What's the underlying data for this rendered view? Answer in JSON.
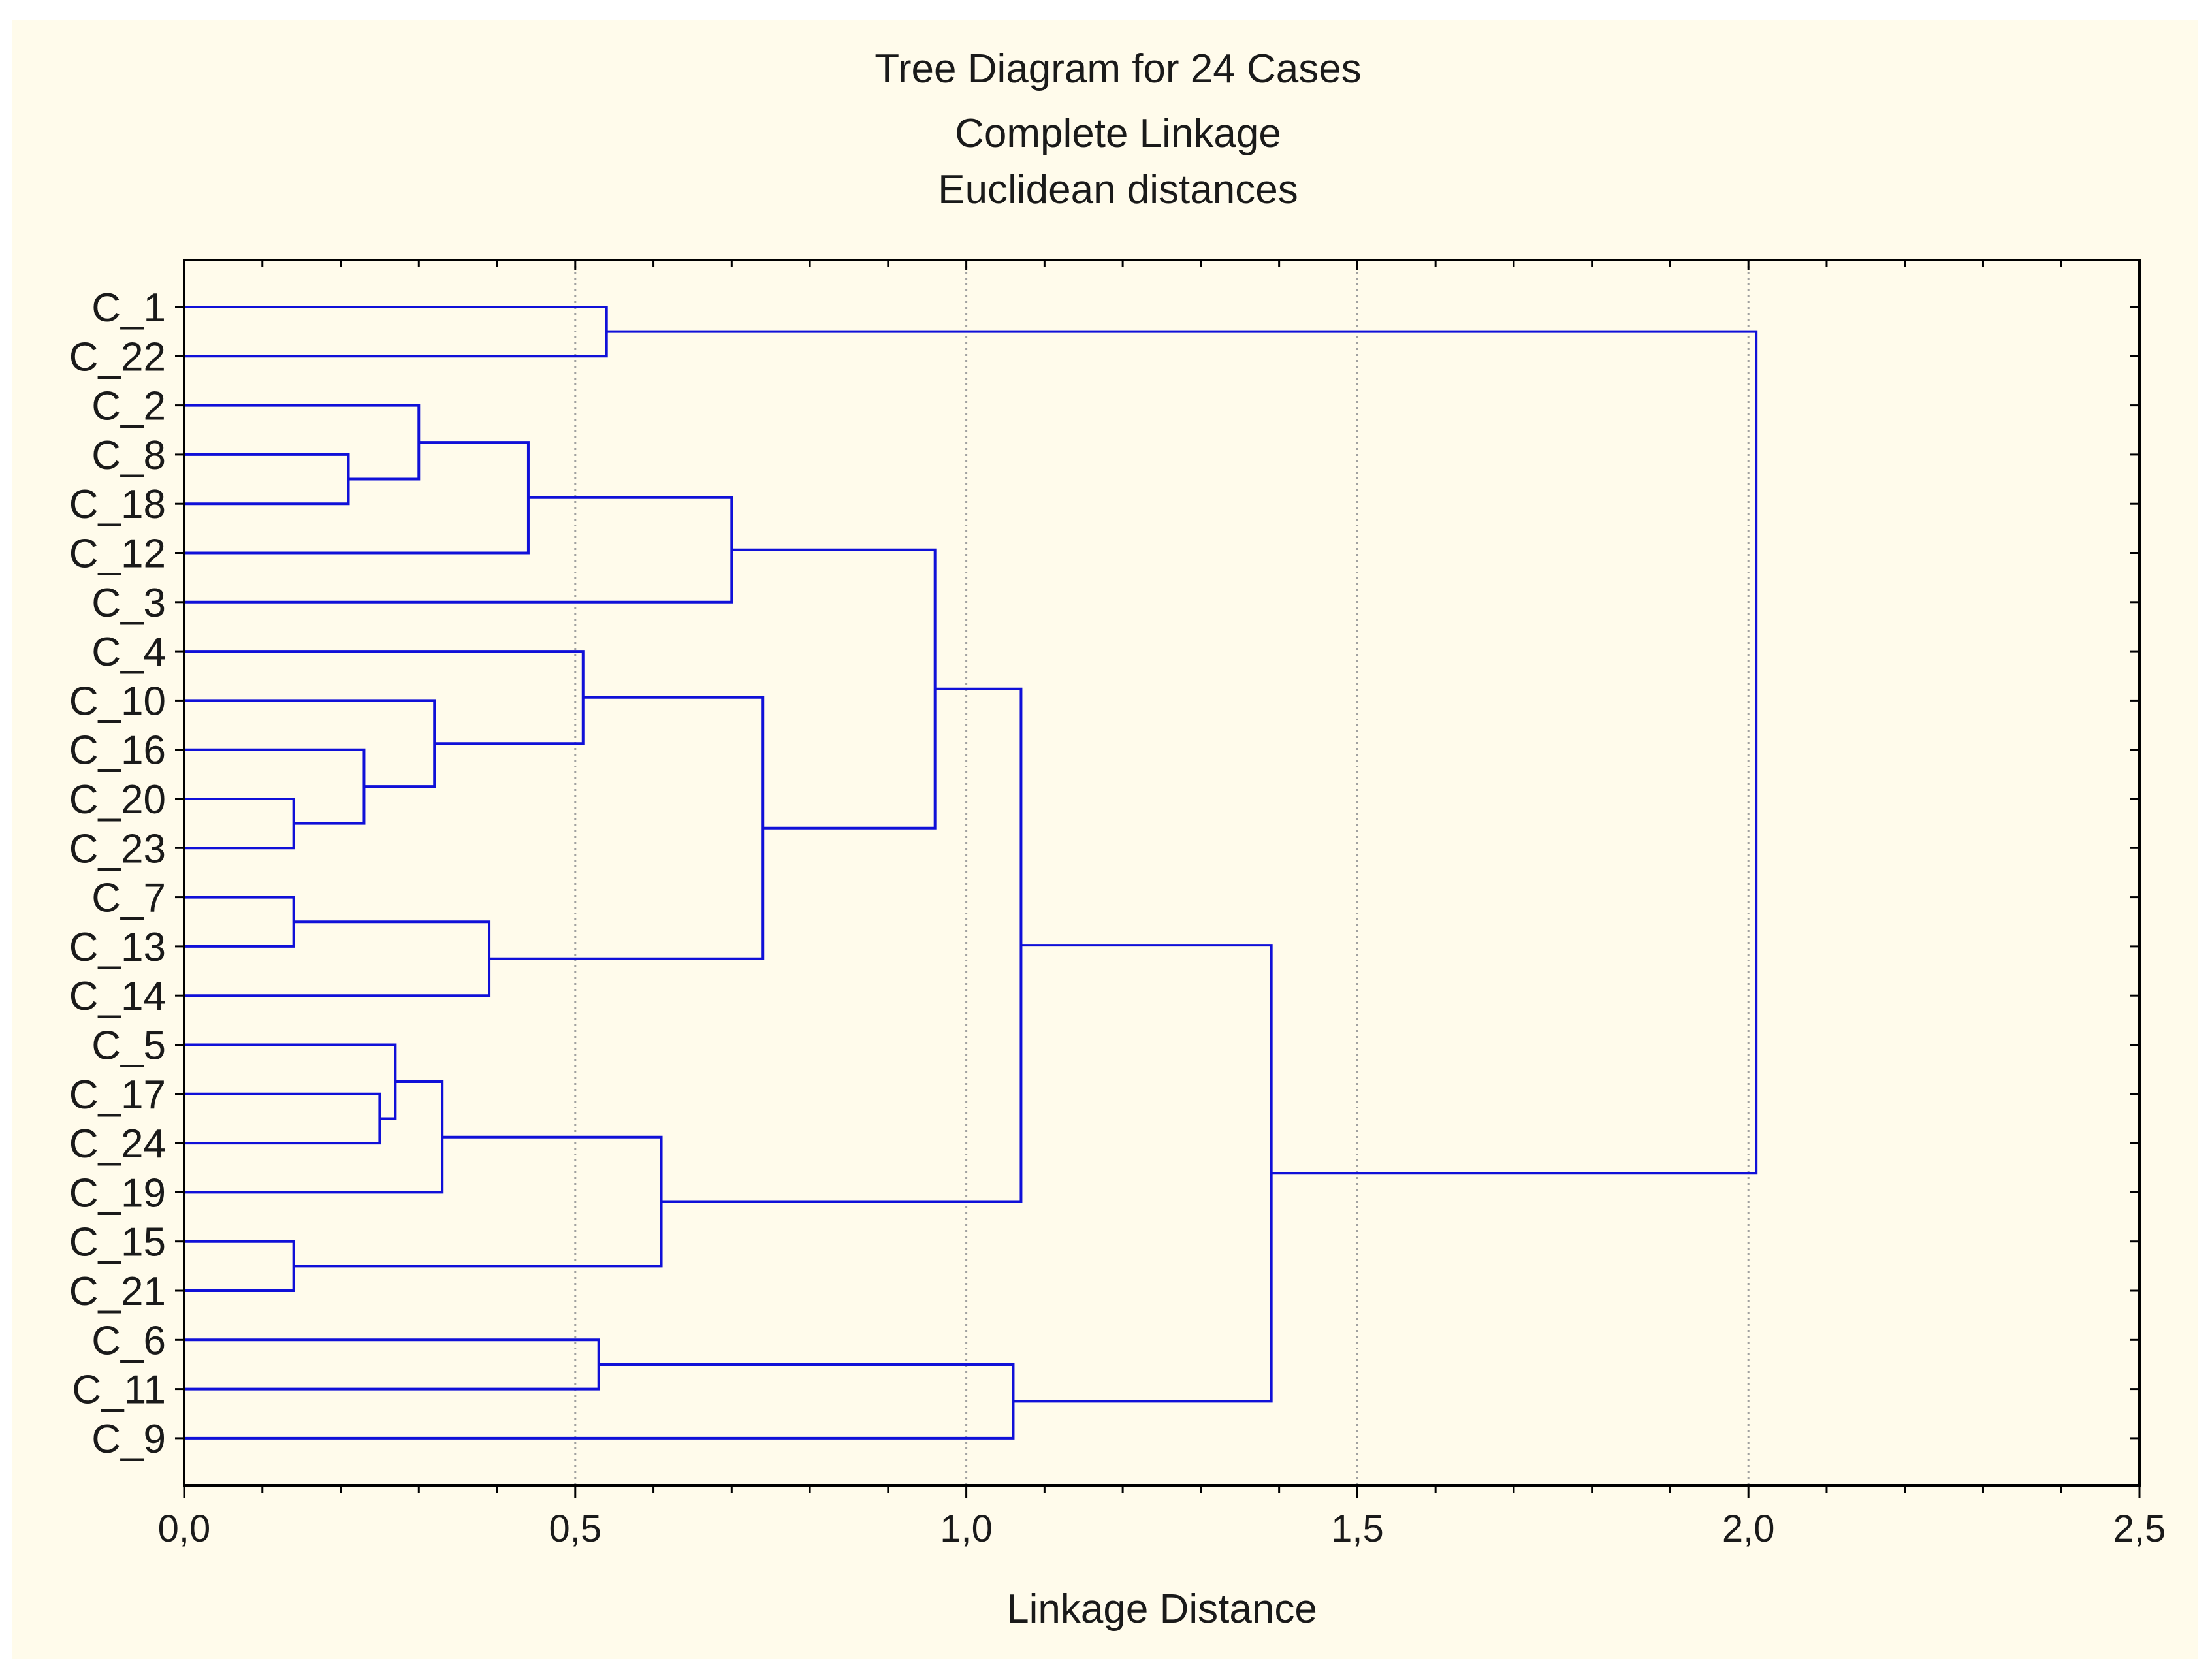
{
  "chart_data": {
    "type": "dendrogram",
    "title": "Tree Diagram for 24 Cases",
    "subtitle": "Complete Linkage",
    "subtitle2": "Euclidean distances",
    "xlabel": "Linkage Distance",
    "xlim": [
      0,
      2.5
    ],
    "xticks": [
      0,
      0.5,
      1.0,
      1.5,
      2.0,
      2.5
    ],
    "xtick_labels": [
      "0,0",
      "0,5",
      "1,0",
      "1,5",
      "2,0",
      "2,5"
    ],
    "grid": "vertical dotted",
    "line_color": "#1010d8",
    "cases": [
      "C_1",
      "C_22",
      "C_2",
      "C_8",
      "C_18",
      "C_12",
      "C_3",
      "C_4",
      "C_10",
      "C_16",
      "C_20",
      "C_23",
      "C_7",
      "C_13",
      "C_14",
      "C_5",
      "C_17",
      "C_24",
      "C_19",
      "C_15",
      "C_21",
      "C_6",
      "C_11",
      "C_9"
    ],
    "merges": [
      {
        "id": "m1",
        "left": "C_8",
        "right": "C_18",
        "height": 0.21
      },
      {
        "id": "m2",
        "left": "C_2",
        "right": "m1",
        "height": 0.3
      },
      {
        "id": "m3",
        "left": "m2",
        "right": "C_12",
        "height": 0.44
      },
      {
        "id": "m4",
        "left": "m3",
        "right": "C_3",
        "height": 0.7
      },
      {
        "id": "m5",
        "left": "C_20",
        "right": "C_23",
        "height": 0.14
      },
      {
        "id": "m6",
        "left": "C_16",
        "right": "m5",
        "height": 0.23
      },
      {
        "id": "m7",
        "left": "C_10",
        "right": "m6",
        "height": 0.32
      },
      {
        "id": "m8",
        "left": "C_4",
        "right": "m7",
        "height": 0.51
      },
      {
        "id": "m9",
        "left": "C_7",
        "right": "C_13",
        "height": 0.14
      },
      {
        "id": "m10",
        "left": "m9",
        "right": "C_14",
        "height": 0.39
      },
      {
        "id": "m11",
        "left": "m8",
        "right": "m10",
        "height": 0.74
      },
      {
        "id": "m12",
        "left": "m4",
        "right": "m11",
        "height": 0.96
      },
      {
        "id": "m13",
        "left": "C_17",
        "right": "C_24",
        "height": 0.25
      },
      {
        "id": "m14",
        "left": "C_5",
        "right": "m13",
        "height": 0.27
      },
      {
        "id": "m15",
        "left": "m14",
        "right": "C_19",
        "height": 0.33
      },
      {
        "id": "m16",
        "left": "C_15",
        "right": "C_21",
        "height": 0.14
      },
      {
        "id": "m17",
        "left": "m15",
        "right": "m16",
        "height": 0.61
      },
      {
        "id": "m18",
        "left": "m12",
        "right": "m17",
        "height": 1.07
      },
      {
        "id": "m19",
        "left": "C_6",
        "right": "C_11",
        "height": 0.53
      },
      {
        "id": "m20",
        "left": "m19",
        "right": "C_9",
        "height": 1.06
      },
      {
        "id": "m21",
        "left": "m18",
        "right": "m20",
        "height": 1.39
      },
      {
        "id": "m22",
        "left": "C_1",
        "right": "C_22",
        "height": 0.54
      },
      {
        "id": "m23",
        "left": "m22",
        "right": "m21",
        "height": 2.01
      }
    ]
  }
}
